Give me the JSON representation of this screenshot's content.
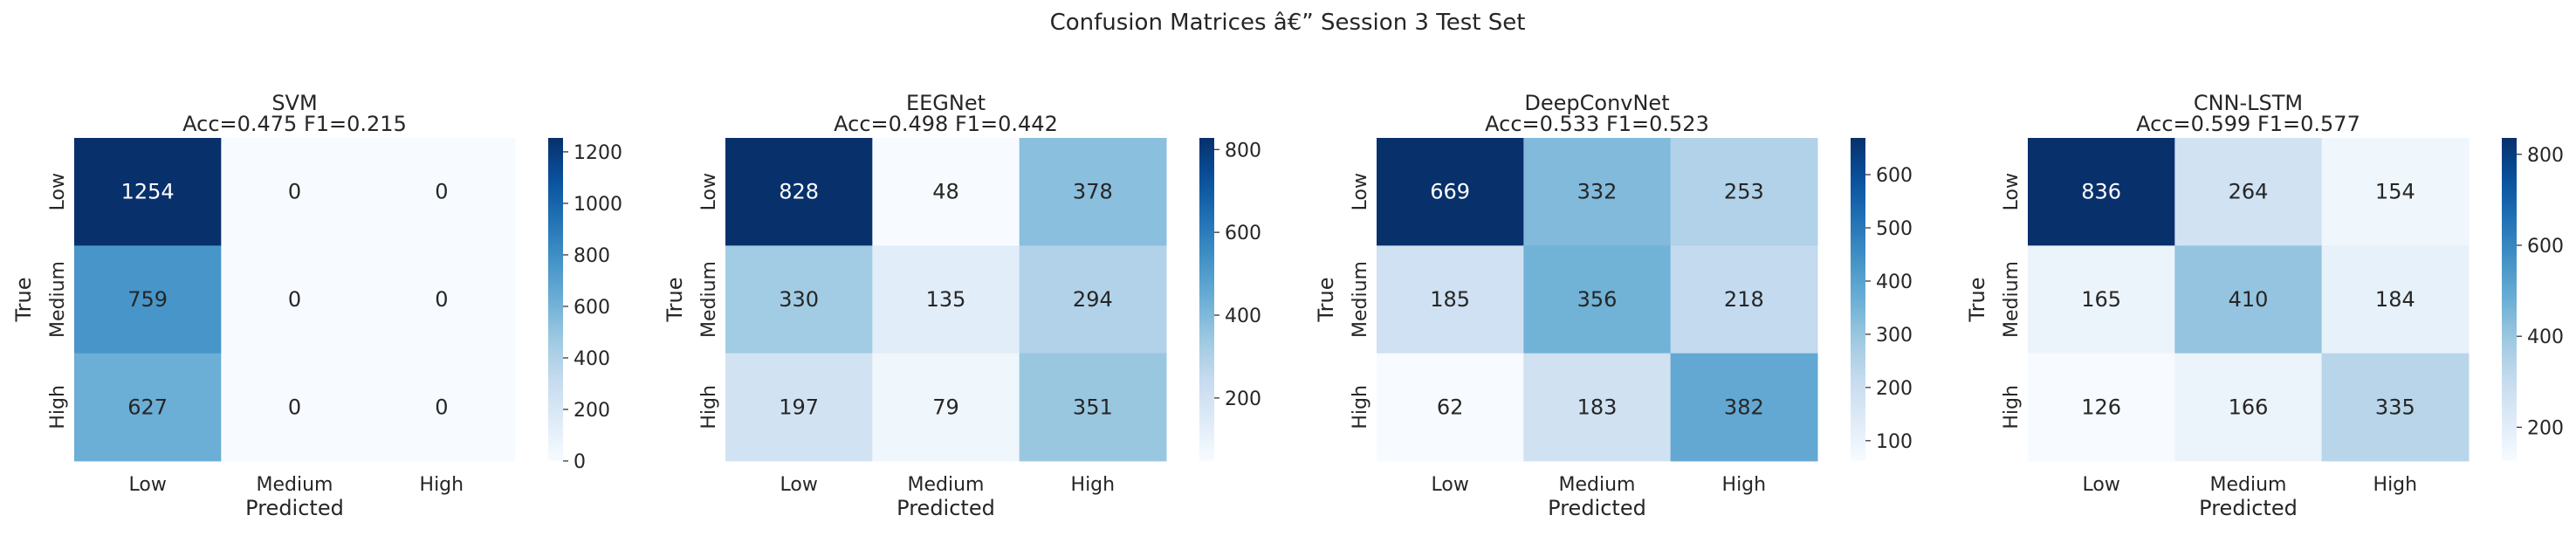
{
  "suptitle": "Confusion Matrices â€” Session 3 Test Set",
  "chart_data": [
    {
      "type": "heatmap",
      "title": "SVM",
      "subtitle": "Acc=0.475 F1=0.215",
      "xlabel": "Predicted",
      "ylabel": "True",
      "x_categories": [
        "Low",
        "Medium",
        "High"
      ],
      "y_categories": [
        "Low",
        "Medium",
        "High"
      ],
      "values": [
        [
          1254,
          0,
          0
        ],
        [
          759,
          0,
          0
        ],
        [
          627,
          0,
          0
        ]
      ],
      "colorbar": {
        "min": 0,
        "max": 1254,
        "ticks": [
          0,
          200,
          400,
          600,
          800,
          1000,
          1200
        ]
      },
      "colormap": "Blues"
    },
    {
      "type": "heatmap",
      "title": "EEGNet",
      "subtitle": "Acc=0.498 F1=0.442",
      "xlabel": "Predicted",
      "ylabel": "True",
      "x_categories": [
        "Low",
        "Medium",
        "High"
      ],
      "y_categories": [
        "Low",
        "Medium",
        "High"
      ],
      "values": [
        [
          828,
          48,
          378
        ],
        [
          330,
          135,
          294
        ],
        [
          197,
          79,
          351
        ]
      ],
      "colorbar": {
        "min": 48,
        "max": 828,
        "ticks": [
          200,
          400,
          600,
          800
        ]
      },
      "colormap": "Blues"
    },
    {
      "type": "heatmap",
      "title": "DeepConvNet",
      "subtitle": "Acc=0.533 F1=0.523",
      "xlabel": "Predicted",
      "ylabel": "True",
      "x_categories": [
        "Low",
        "Medium",
        "High"
      ],
      "y_categories": [
        "Low",
        "Medium",
        "High"
      ],
      "values": [
        [
          669,
          332,
          253
        ],
        [
          185,
          356,
          218
        ],
        [
          62,
          183,
          382
        ]
      ],
      "colorbar": {
        "min": 62,
        "max": 669,
        "ticks": [
          100,
          200,
          300,
          400,
          500,
          600
        ]
      },
      "colormap": "Blues"
    },
    {
      "type": "heatmap",
      "title": "CNN-LSTM",
      "subtitle": "Acc=0.599 F1=0.577",
      "xlabel": "Predicted",
      "ylabel": "True",
      "x_categories": [
        "Low",
        "Medium",
        "High"
      ],
      "y_categories": [
        "Low",
        "Medium",
        "High"
      ],
      "values": [
        [
          836,
          264,
          154
        ],
        [
          165,
          410,
          184
        ],
        [
          126,
          166,
          335
        ]
      ],
      "colorbar": {
        "min": 126,
        "max": 836,
        "ticks": [
          200,
          400,
          600,
          800
        ]
      },
      "colormap": "Blues"
    }
  ]
}
